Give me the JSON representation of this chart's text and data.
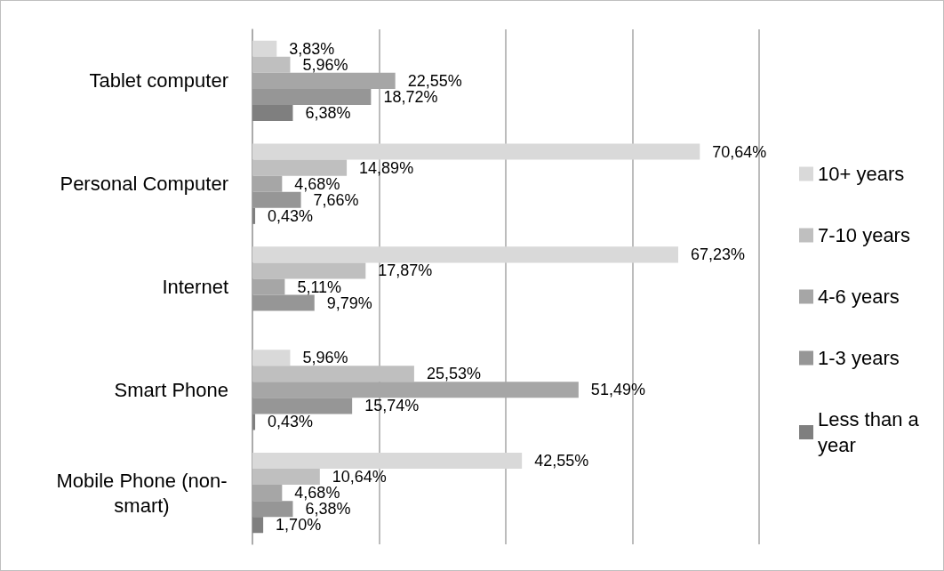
{
  "chart_data": {
    "type": "bar",
    "orientation": "horizontal",
    "categories": [
      "Tablet computer",
      "Personal Computer",
      "Internet",
      "Smart Phone",
      "Mobile Phone (non-smart)"
    ],
    "series": [
      {
        "name": "10+ years",
        "color": "#d9d9d9",
        "values": [
          3.83,
          70.64,
          67.23,
          5.96,
          42.55
        ],
        "value_labels": [
          "3,83%",
          "70,64%",
          "67,23%",
          "5,96%",
          "42,55%"
        ]
      },
      {
        "name": "7-10 years",
        "color": "#bfbfbf",
        "values": [
          5.96,
          14.89,
          17.87,
          25.53,
          10.64
        ],
        "value_labels": [
          "5,96%",
          "14,89%",
          "17,87%",
          "25,53%",
          "10,64%"
        ]
      },
      {
        "name": "4-6 years",
        "color": "#a6a6a6",
        "values": [
          22.55,
          4.68,
          5.11,
          51.49,
          4.68
        ],
        "value_labels": [
          "22,55%",
          "4,68%",
          "5,11%",
          "51,49%",
          "4,68%"
        ]
      },
      {
        "name": "1-3 years",
        "color": "#969696",
        "values": [
          18.72,
          7.66,
          9.79,
          15.74,
          6.38
        ],
        "value_labels": [
          "18,72%",
          "7,66%",
          "9,79%",
          "15,74%",
          "6,38%"
        ]
      },
      {
        "name": "Less than a year",
        "color": "#7f7f7f",
        "values": [
          6.38,
          0.43,
          null,
          0.43,
          1.7
        ],
        "value_labels": [
          "6,38%",
          "0,43%",
          null,
          "0,43%",
          "1,70%"
        ]
      }
    ],
    "xlim": [
      0,
      80
    ],
    "xticks": [
      {
        "value": 0,
        "label": null
      },
      {
        "value": 20,
        "label": null
      },
      {
        "value": 40,
        "label": null
      },
      {
        "value": 60,
        "label": null
      },
      {
        "value": 80,
        "label": null
      }
    ],
    "grid": "x",
    "legend": "right",
    "tick_labels": "y"
  }
}
